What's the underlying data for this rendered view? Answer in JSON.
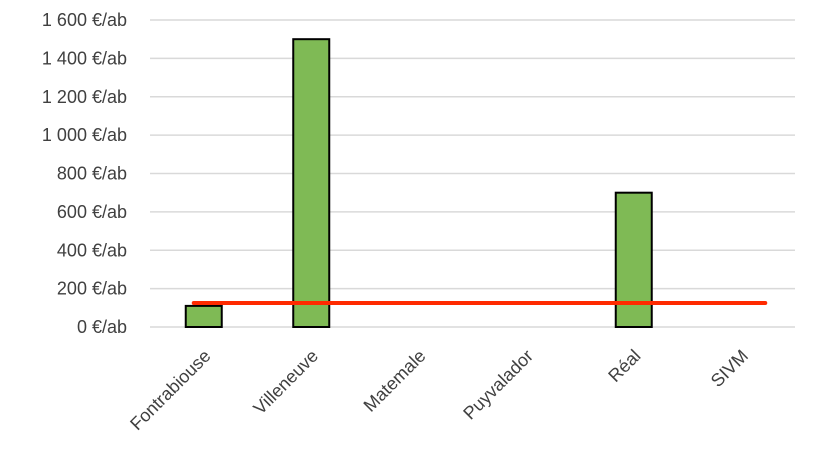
{
  "chart_data": {
    "type": "bar",
    "title": "",
    "xlabel": "",
    "ylabel": "",
    "categories": [
      "Fontrabiouse",
      "Villeneuve",
      "Matemale",
      "Puyvalador",
      "Réal",
      "SIVM"
    ],
    "values": [
      110,
      1500,
      0,
      0,
      700,
      0
    ],
    "reference_line": {
      "value": 125,
      "color": "#ff2a00"
    },
    "ylim": [
      0,
      1600
    ],
    "yticks": [
      0,
      200,
      400,
      600,
      800,
      1000,
      1200,
      1400,
      1600
    ],
    "ytick_labels": [
      "0 €/ab",
      "200 €/ab",
      "400 €/ab",
      "600 €/ab",
      "800 €/ab",
      "1 000 €/ab",
      "1 200 €/ab",
      "1 400 €/ab",
      "1 600 €/ab"
    ],
    "grid": true,
    "legend": "none",
    "colors": {
      "bar_fill": "#7fba55",
      "bar_stroke": "#000000",
      "grid": "#d9d9d9",
      "text": "#404040"
    }
  }
}
